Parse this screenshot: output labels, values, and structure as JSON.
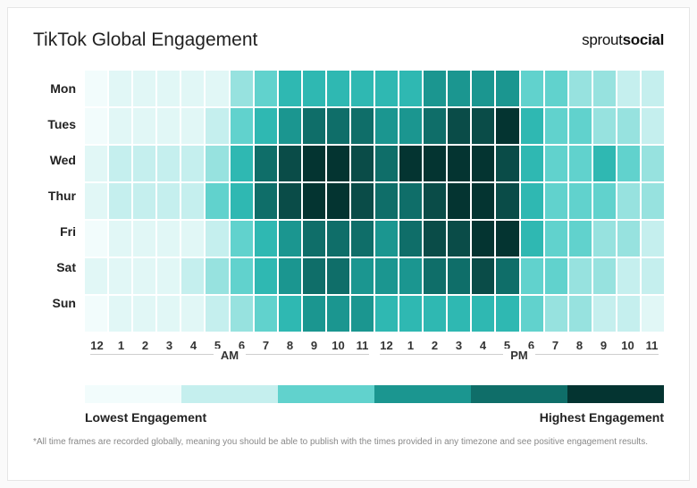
{
  "title": "TikTok Global Engagement",
  "brand_prefix": "sprout",
  "brand_bold": "social",
  "days": [
    "Mon",
    "Tues",
    "Wed",
    "Thur",
    "Fri",
    "Sat",
    "Sun"
  ],
  "hours": [
    "12",
    "1",
    "2",
    "3",
    "4",
    "5",
    "6",
    "7",
    "8",
    "9",
    "10",
    "11",
    "12",
    "1",
    "2",
    "3",
    "4",
    "5",
    "6",
    "7",
    "8",
    "9",
    "10",
    "11"
  ],
  "period_am": "AM",
  "period_pm": "PM",
  "palette": [
    "#f2fcfc",
    "#e1f7f6",
    "#c5efee",
    "#97e2df",
    "#61d2cd",
    "#2fb8b2",
    "#1b9690",
    "#0f6e69",
    "#0a4c48",
    "#043431"
  ],
  "heat_values": [
    [
      0,
      1,
      1,
      1,
      1,
      1,
      3,
      4,
      5,
      5,
      5,
      5,
      5,
      5,
      6,
      6,
      6,
      6,
      4,
      4,
      3,
      3,
      2,
      2
    ],
    [
      0,
      1,
      1,
      1,
      1,
      2,
      4,
      5,
      6,
      7,
      7,
      7,
      6,
      6,
      7,
      8,
      8,
      9,
      5,
      4,
      4,
      3,
      3,
      2
    ],
    [
      1,
      2,
      2,
      2,
      2,
      3,
      5,
      7,
      8,
      9,
      9,
      8,
      7,
      9,
      9,
      9,
      9,
      8,
      5,
      4,
      4,
      5,
      4,
      3
    ],
    [
      1,
      2,
      2,
      2,
      2,
      4,
      5,
      7,
      8,
      9,
      9,
      8,
      7,
      7,
      8,
      9,
      9,
      8,
      5,
      4,
      4,
      4,
      3,
      3
    ],
    [
      0,
      1,
      1,
      1,
      1,
      2,
      4,
      5,
      6,
      7,
      7,
      7,
      6,
      7,
      8,
      8,
      9,
      9,
      5,
      4,
      4,
      3,
      3,
      2
    ],
    [
      1,
      1,
      1,
      1,
      2,
      3,
      4,
      5,
      6,
      7,
      7,
      6,
      6,
      6,
      7,
      7,
      8,
      7,
      4,
      4,
      3,
      3,
      2,
      2
    ],
    [
      0,
      1,
      1,
      1,
      1,
      2,
      3,
      4,
      5,
      6,
      6,
      6,
      5,
      5,
      5,
      5,
      5,
      5,
      4,
      3,
      3,
      2,
      2,
      1
    ]
  ],
  "legend_low": "Lowest Engagement",
  "legend_high": "Highest Engagement",
  "legend_colors": [
    "#f2fcfc",
    "#c5efee",
    "#61d2cd",
    "#1b9690",
    "#0f6e69",
    "#043431"
  ],
  "footnote": "*All time frames are recorded globally, meaning you should be able to publish with the times provided in any timezone and see positive engagement results."
}
